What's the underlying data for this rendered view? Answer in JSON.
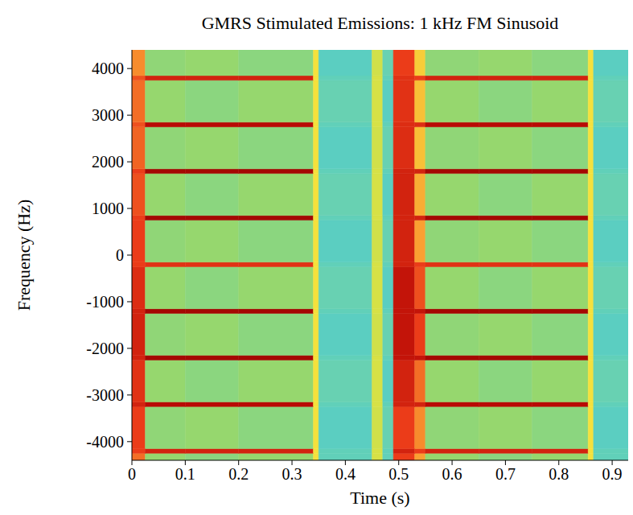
{
  "chart_data": {
    "type": "heatmap",
    "title": "GMRS Stimulated Emissions: 1 kHz FM Sinusoid",
    "x_label": "Time (s)",
    "y_label": "Frequency (Hz)",
    "xlim": [
      0,
      0.93
    ],
    "ylim": [
      -4400,
      4400
    ],
    "xticks": [
      0,
      0.1,
      0.2,
      0.3,
      0.4,
      0.5,
      0.6,
      0.7,
      0.8,
      0.9
    ],
    "yticks": [
      -4000,
      -3000,
      -2000,
      -1000,
      0,
      1000,
      2000,
      3000,
      4000
    ],
    "grid": false,
    "zlim": [
      0,
      10
    ],
    "x_edges": [
      0,
      0.025,
      0.1,
      0.2,
      0.34,
      0.35,
      0.45,
      0.47,
      0.49,
      0.53,
      0.55,
      0.65,
      0.75,
      0.855,
      0.865,
      0.93
    ],
    "y_edges": [
      -4400,
      -4250,
      -4150,
      -3250,
      -3150,
      -2250,
      -2150,
      -1250,
      -1150,
      -250,
      -150,
      750,
      850,
      1750,
      1850,
      2750,
      2850,
      3750,
      3850,
      4400
    ],
    "z": [
      [
        7.5,
        4.5,
        4.3,
        4.5,
        6,
        3.6,
        5.5,
        3.6,
        8,
        7,
        4.5,
        4.3,
        4.5,
        6,
        3.6
      ],
      [
        8,
        8.5,
        8.5,
        8.5,
        6,
        3.6,
        5.5,
        3.6,
        8.5,
        8,
        8.5,
        8.5,
        8.5,
        6,
        3.6
      ],
      [
        8,
        4.4,
        4.5,
        4.3,
        6,
        3.5,
        5.4,
        3.7,
        8,
        7.2,
        4.4,
        4.5,
        4.3,
        6,
        3.5
      ],
      [
        8.5,
        9,
        9,
        9,
        6,
        3.6,
        5.5,
        3.6,
        8.5,
        8.5,
        9,
        9,
        9,
        6,
        3.6
      ],
      [
        8.2,
        4.5,
        4.3,
        4.5,
        6,
        3.7,
        5.5,
        3.5,
        8.5,
        7.5,
        4.5,
        4.3,
        4.5,
        6,
        3.7
      ],
      [
        8.5,
        9.3,
        9.3,
        9.3,
        6,
        3.6,
        5.5,
        3.6,
        8.8,
        8.8,
        9.3,
        9.3,
        9.3,
        6,
        3.6
      ],
      [
        8.5,
        4.4,
        4.5,
        4.3,
        6,
        3.5,
        5.4,
        3.7,
        8.8,
        8,
        4.4,
        4.5,
        4.3,
        6,
        3.5
      ],
      [
        8.5,
        9.3,
        9.3,
        9.3,
        6,
        3.6,
        5.5,
        3.6,
        8.8,
        8.8,
        9.3,
        9.3,
        9.3,
        6,
        3.6
      ],
      [
        8.3,
        4.5,
        4.3,
        4.5,
        6,
        3.7,
        5.5,
        3.5,
        8.8,
        7.8,
        4.5,
        4.3,
        4.5,
        6,
        3.7
      ],
      [
        8,
        8.2,
        8.2,
        8.2,
        6,
        3.6,
        5.5,
        3.6,
        8.5,
        8,
        8.2,
        8.2,
        8.2,
        6,
        3.6
      ],
      [
        8,
        4.4,
        4.5,
        4.3,
        6,
        3.5,
        5.4,
        3.7,
        8.5,
        7,
        4.4,
        4.5,
        4.3,
        6,
        3.5
      ],
      [
        8,
        9.3,
        9.3,
        9.3,
        6,
        3.6,
        5.5,
        3.6,
        8.5,
        8.5,
        9.3,
        9.3,
        9.3,
        6,
        3.6
      ],
      [
        7.8,
        4.5,
        4.3,
        4.5,
        6,
        3.7,
        5.5,
        3.5,
        8.5,
        6.8,
        4.5,
        4.3,
        4.5,
        6,
        3.7
      ],
      [
        8,
        9.3,
        9.3,
        9.3,
        6,
        3.6,
        5.5,
        3.6,
        8.5,
        8.5,
        9.3,
        9.3,
        9.3,
        6,
        3.6
      ],
      [
        7.6,
        4.4,
        4.5,
        4.3,
        6,
        3.5,
        5.4,
        3.7,
        8.3,
        6.5,
        4.4,
        4.5,
        4.3,
        6,
        3.5
      ],
      [
        7.8,
        9,
        9,
        9,
        6,
        3.6,
        5.5,
        3.6,
        8.3,
        8.3,
        9,
        9,
        9,
        6,
        3.6
      ],
      [
        7.5,
        4.5,
        4.3,
        4.5,
        6,
        3.7,
        5.5,
        3.5,
        8.2,
        6.5,
        4.5,
        4.3,
        4.5,
        6,
        3.7
      ],
      [
        7.8,
        8.5,
        8.5,
        8.5,
        6,
        3.6,
        5.5,
        3.6,
        8.2,
        8,
        8.5,
        8.5,
        8.5,
        6,
        3.6
      ],
      [
        7.2,
        4.4,
        4.5,
        4.3,
        6,
        3.5,
        5.4,
        3.7,
        8,
        6.3,
        4.4,
        4.5,
        4.3,
        6,
        3.5
      ]
    ]
  }
}
